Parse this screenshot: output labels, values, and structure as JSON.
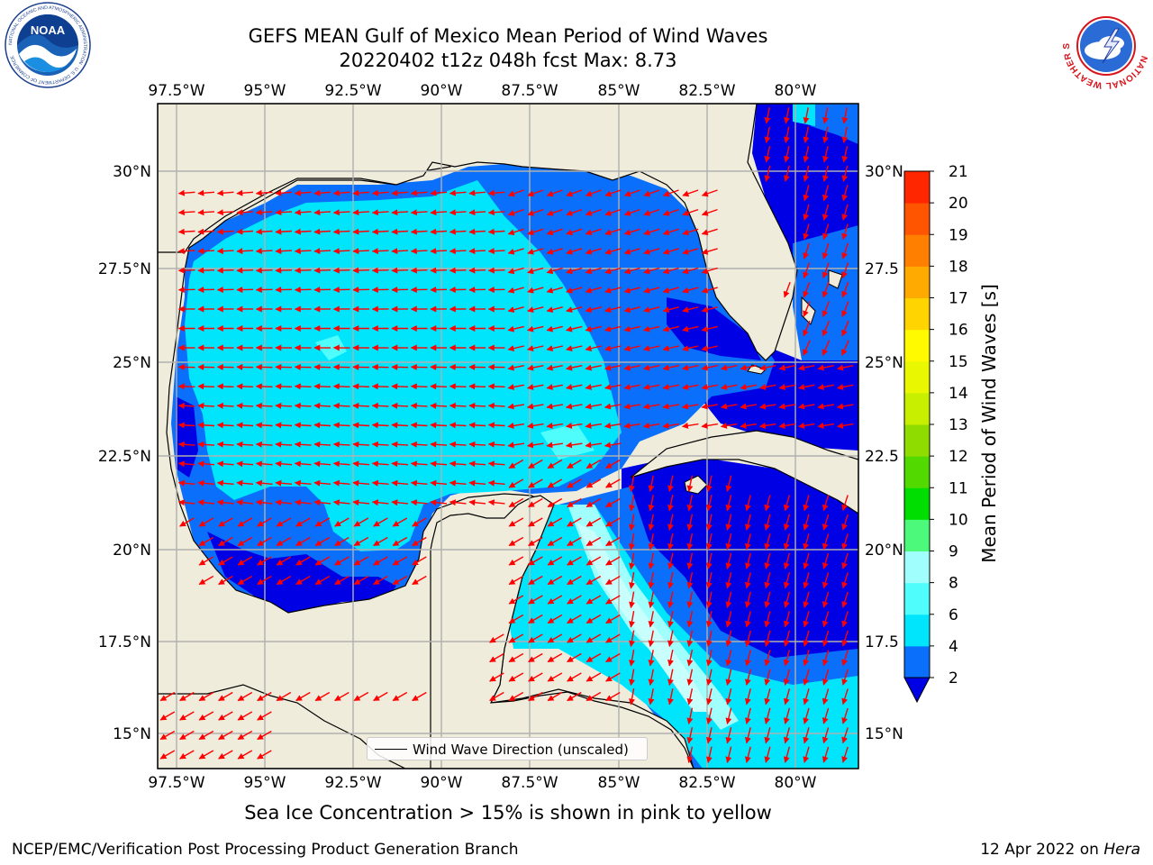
{
  "title": {
    "line1": "GEFS MEAN Gulf of Mexico Mean Period of Wind Waves",
    "line2": "20220402 t12z 048h fcst   Max: 8.73"
  },
  "logos": {
    "left": "NOAA",
    "left_ring": "NATIONAL OCEANIC AND ATMOSPHERIC ADMINISTRATION · U.S. DEPARTMENT OF COMMERCE",
    "right_ring": "NATIONAL WEATHER SERVICE"
  },
  "map": {
    "lon_ticks": [
      "97.5°W",
      "95°W",
      "92.5°W",
      "90°W",
      "87.5°W",
      "85°W",
      "82.5°W",
      "80°W"
    ],
    "lat_ticks_left": [
      "30°N",
      "27.5°N",
      "25°N",
      "22.5°N",
      "20°N",
      "17.5°N",
      "15°N"
    ],
    "lat_ticks_right": [
      "30°N",
      "27.5",
      "25°N",
      "22.5",
      "20°N",
      "17.5",
      "15°N"
    ],
    "land_color": "#efecdc",
    "grid": true,
    "arrow_color": "#ff0000"
  },
  "legend": {
    "label": "Wind Wave Direction (unscaled)"
  },
  "colorbar": {
    "title": "Mean Period of Wind Waves [s]",
    "ticks": [
      "2",
      "4",
      "6",
      "8",
      "9",
      "10",
      "11",
      "12",
      "13",
      "14",
      "15",
      "16",
      "17",
      "18",
      "19",
      "20",
      "21"
    ],
    "colors": [
      "#0a6ffb",
      "#00e5fc",
      "#4ffefc",
      "#a0fefc",
      "#4cf97a",
      "#00dd00",
      "#52d900",
      "#8fdd00",
      "#c9ef00",
      "#e9f700",
      "#fffa00",
      "#ffd400",
      "#ffaa00",
      "#ff7f00",
      "#ff5500",
      "#ff2600",
      "#ff0000"
    ],
    "extend_color": "#0000e4"
  },
  "footer": {
    "note": "Sea Ice Concentration > 15% is shown in pink to yellow",
    "credit_left": "NCEP/EMC/Verification Post Processing Product Generation Branch",
    "credit_right_prefix": "12 Apr 2022 on ",
    "credit_right_host": "Hera"
  }
}
